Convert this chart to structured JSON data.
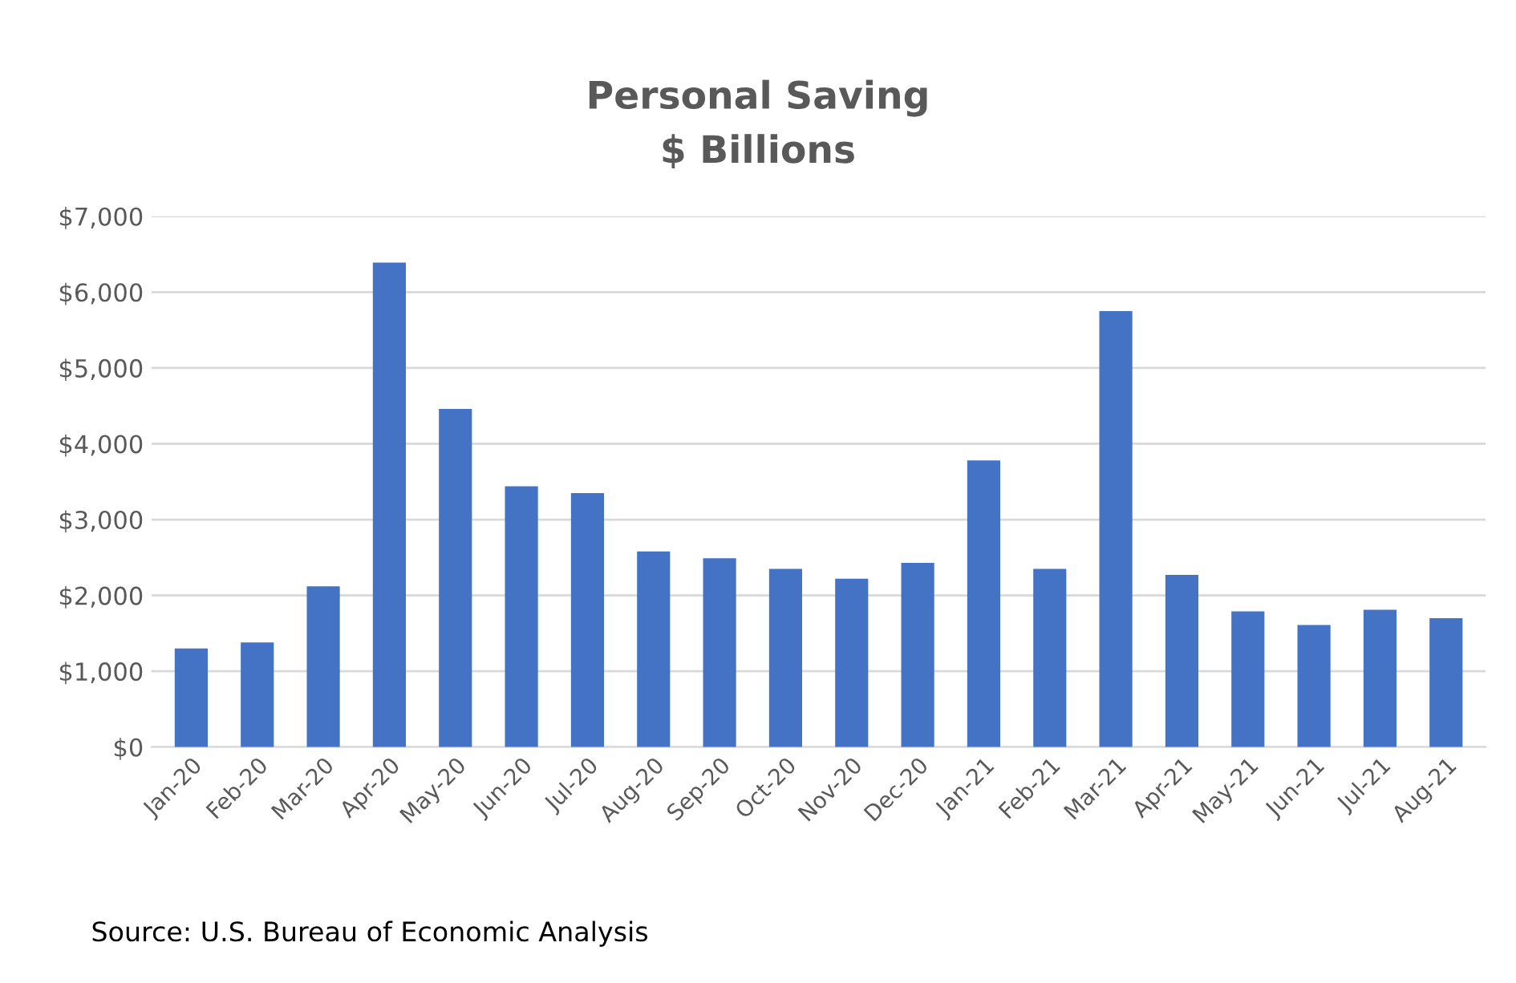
{
  "chart_data": {
    "type": "bar",
    "title": "Personal Saving",
    "subtitle": "$ Billions",
    "categories": [
      "Jan-20",
      "Feb-20",
      "Mar-20",
      "Apr-20",
      "May-20",
      "Jun-20",
      "Jul-20",
      "Aug-20",
      "Sep-20",
      "Oct-20",
      "Nov-20",
      "Dec-20",
      "Jan-21",
      "Feb-21",
      "Mar-21",
      "Apr-21",
      "May-21",
      "Jun-21",
      "Jul-21",
      "Aug-21"
    ],
    "values": [
      1300,
      1380,
      2120,
      6390,
      4460,
      3440,
      3350,
      2580,
      2490,
      2350,
      2220,
      2430,
      3780,
      2350,
      5750,
      2270,
      1790,
      1610,
      1810,
      1700
    ],
    "color": "#4472c4",
    "ylim": [
      0,
      7000
    ],
    "yticks": [
      {
        "value": 0,
        "label": "$0"
      },
      {
        "value": 1000,
        "label": "$1,000"
      },
      {
        "value": 2000,
        "label": "$2,000"
      },
      {
        "value": 3000,
        "label": "$3,000"
      },
      {
        "value": 4000,
        "label": "$4,000"
      },
      {
        "value": 5000,
        "label": "$5,000"
      },
      {
        "value": 6000,
        "label": "$6,000"
      },
      {
        "value": 7000,
        "label": "$7,000"
      }
    ],
    "grid": "y",
    "annotations": [
      "Source: U.S. Bureau of Economic Analysis"
    ]
  }
}
